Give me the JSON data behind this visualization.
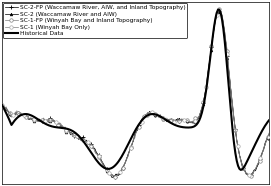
{
  "legend_entries": [
    "Historical Data",
    "SC-1 (Winyah Bay Only)",
    "SC-1-FP (Winyah Bay and Inland Topography)",
    "SC-2 (Waccamaw River and AIW)",
    "SC-2-FP (Waccamaw River, AIW, and Inland Topography)"
  ],
  "grid_color": "#cccccc",
  "background_color": "#ffffff",
  "legend_fontsize": 4.2,
  "n_points": 200
}
